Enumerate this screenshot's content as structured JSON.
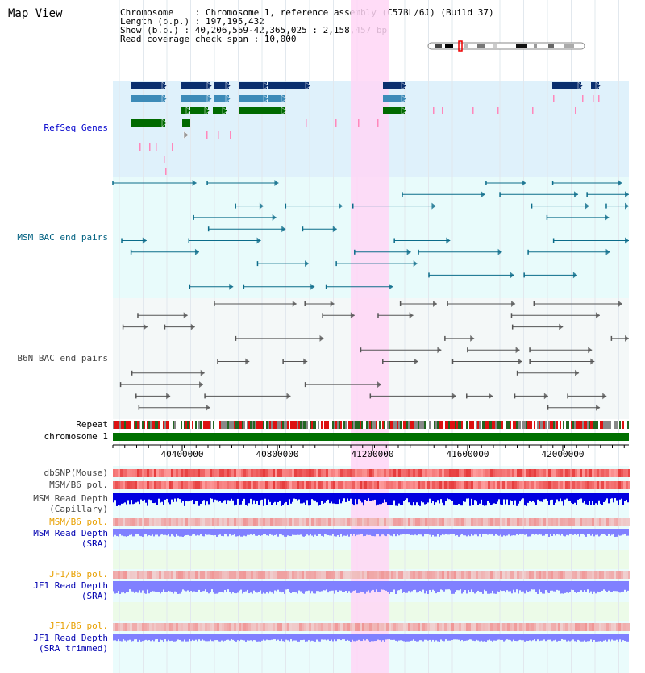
{
  "map_title": "Map View",
  "info": {
    "chromosome": "Chromosome    : Chromosome 1, reference assembly (C57BL/6J) (Build 37)",
    "length": "Length (b.p.) : 197,195,432",
    "show": "Show (b.p.) : 40,206,569-42,365,025 : 2,158,457 bp",
    "span": "Read coverage check span : 10,000"
  },
  "tracks": {
    "refseq": "RefSeq Genes",
    "msm_bac": "MSM BAC end pairs",
    "b6n_bac": "B6N BAC end pairs",
    "repeat": "Repeat",
    "chromosome": "chromosome 1",
    "dbsnp": "dbSNP(Mouse)",
    "msm_b6_pol_1": "MSM/B6 pol.",
    "msm_depth_cap_1": "MSM Read Depth",
    "msm_depth_cap_2": "(Capillary)",
    "msm_b6_pol_2": "MSM/B6 pol.",
    "msm_depth_sra_1": "MSM Read Depth",
    "msm_depth_sra_2": "(SRA)",
    "jf1_pol_1": "JF1/B6 pol.",
    "jf1_depth_1": "JF1 Read Depth",
    "jf1_depth_2": "(SRA)",
    "jf1_pol_2": "JF1/B6 pol.",
    "jf1_trim_1": "JF1 Read Depth",
    "jf1_trim_2": "(SRA trimmed)"
  },
  "axis": {
    "ticks": [
      "40400000",
      "40800000",
      "41200000",
      "41600000",
      "42000000"
    ]
  },
  "colors": {
    "refseq_bg": "#dff1fb",
    "msm_bg": "#e8fbfb",
    "b6n_bg": "#f4f8f8",
    "highlight": "#ffd6f6",
    "chrom": "#007000",
    "gene_dark": "#0a2f6e",
    "gene_mid": "#3d8bb8",
    "gene_green": "#006a00",
    "msm_line": "#0b6c8a",
    "b6n_line": "#555555",
    "depth_blue": "#0000e0",
    "depth_light": "#8080ff"
  }
}
